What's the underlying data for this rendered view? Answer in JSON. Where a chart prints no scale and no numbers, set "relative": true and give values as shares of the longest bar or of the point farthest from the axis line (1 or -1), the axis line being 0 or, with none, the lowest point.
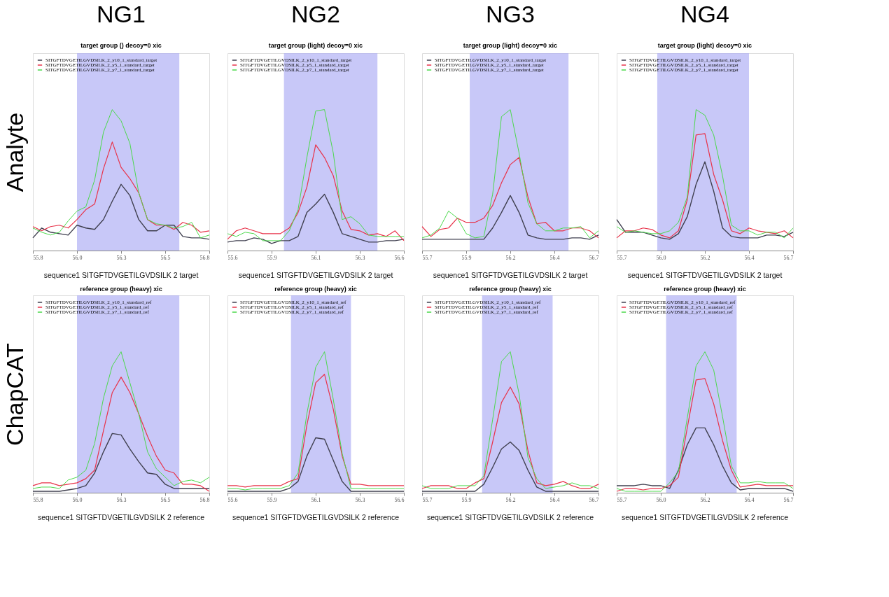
{
  "chart_data": [
    {
      "type": "line",
      "title": "NG1",
      "subtitle": "target group () decoy=0 xic",
      "ylabel": "Analyte",
      "relative": true,
      "legend": "top left",
      "x": [
        55.8,
        55.85,
        55.9,
        55.95,
        56.0,
        56.05,
        56.1,
        56.15,
        56.2,
        56.25,
        56.3,
        56.35,
        56.4,
        56.45,
        56.5,
        56.55,
        56.6,
        56.65,
        56.7,
        56.75,
        56.8
      ],
      "xlim": [
        55.8,
        56.8
      ],
      "xticks": [
        55.8,
        {
          "value": 56.05,
          "label": "56.0"
        },
        56.3,
        {
          "value": 56.55,
          "label": "56.5"
        },
        56.8
      ],
      "bands": [
        {
          "axis": "x",
          "from": 56.05,
          "to": 56.63,
          "color": "#aaaaf5"
        }
      ],
      "series": [
        {
          "name": "SITGFTDVGETILGVDSILK_2_y10_1_standard_target",
          "color": "#404050",
          "values": [
            0.09,
            0.16,
            0.13,
            0.12,
            0.11,
            0.18,
            0.16,
            0.15,
            0.22,
            0.35,
            0.47,
            0.39,
            0.22,
            0.14,
            0.14,
            0.18,
            0.18,
            0.1,
            0.09,
            0.09,
            0.08
          ]
        },
        {
          "name": "SITGFTDVGETILGVDSILK_2_y5_1_standard_target",
          "color": "#e8334a",
          "values": [
            0.17,
            0.14,
            0.17,
            0.18,
            0.16,
            0.22,
            0.29,
            0.33,
            0.58,
            0.77,
            0.59,
            0.51,
            0.41,
            0.22,
            0.18,
            0.18,
            0.15,
            0.2,
            0.18,
            0.13,
            0.14
          ]
        },
        {
          "name": "SITGFTDVGETILGVDSILK_2_y7_1_standard_target",
          "color": "#4cd94c",
          "values": [
            0.16,
            0.13,
            0.11,
            0.13,
            0.21,
            0.28,
            0.31,
            0.5,
            0.84,
            1.0,
            0.92,
            0.76,
            0.41,
            0.22,
            0.19,
            0.18,
            0.16,
            0.17,
            0.2,
            0.09,
            0.11
          ]
        }
      ],
      "annotations": [
        "sequence1 SITGFTDVGETILGVDSILK 2 target"
      ]
    },
    {
      "type": "line",
      "title": "NG2",
      "subtitle": "target group (light) decoy=0 xic",
      "relative": true,
      "legend": "top left",
      "x": [
        55.6,
        55.65,
        55.7,
        55.75,
        55.8,
        55.85,
        55.9,
        55.95,
        56.0,
        56.05,
        56.1,
        56.15,
        56.2,
        56.25,
        56.3,
        56.35,
        56.4,
        56.45,
        56.5,
        56.55,
        56.6
      ],
      "xlim": [
        55.6,
        56.6
      ],
      "xticks": [
        55.6,
        {
          "value": 55.85,
          "label": "55.9"
        },
        56.1,
        {
          "value": 56.35,
          "label": "56.3"
        },
        56.6
      ],
      "bands": [
        {
          "axis": "x",
          "from": 55.92,
          "to": 56.45,
          "color": "#aaaaf5"
        }
      ],
      "series": [
        {
          "name": "SITGFTDVGETILGVDSILK_2_y10_1_standard_target",
          "color": "#404050",
          "values": [
            0.06,
            0.07,
            0.07,
            0.09,
            0.08,
            0.05,
            0.07,
            0.07,
            0.1,
            0.27,
            0.33,
            0.4,
            0.27,
            0.12,
            0.1,
            0.08,
            0.06,
            0.06,
            0.07,
            0.07,
            0.08
          ]
        },
        {
          "name": "SITGFTDVGETILGVDSILK_2_y5_1_standard_target",
          "color": "#e8334a",
          "values": [
            0.08,
            0.14,
            0.16,
            0.14,
            0.12,
            0.12,
            0.12,
            0.16,
            0.27,
            0.45,
            0.75,
            0.66,
            0.53,
            0.28,
            0.15,
            0.14,
            0.11,
            0.12,
            0.1,
            0.14,
            0.07
          ]
        },
        {
          "name": "SITGFTDVGETILGVDSILK_2_y7_1_standard_target",
          "color": "#4cd94c",
          "values": [
            0.12,
            0.1,
            0.13,
            0.12,
            0.07,
            0.07,
            0.07,
            0.14,
            0.29,
            0.66,
            0.99,
            1.0,
            0.69,
            0.22,
            0.24,
            0.19,
            0.11,
            0.1,
            0.1,
            0.1,
            0.1
          ]
        }
      ],
      "annotations": [
        "sequence1 SITGFTDVGETILGVDSILK 2 target"
      ]
    },
    {
      "type": "line",
      "title": "NG3",
      "subtitle": "target group (light) decoy=0 xic",
      "relative": true,
      "legend": "top left",
      "x": [
        55.7,
        55.75,
        55.8,
        55.85,
        55.9,
        55.95,
        56.0,
        56.05,
        56.1,
        56.15,
        56.2,
        56.25,
        56.3,
        56.35,
        56.4,
        56.45,
        56.5,
        56.55,
        56.6,
        56.65,
        56.7
      ],
      "xlim": [
        55.7,
        56.7
      ],
      "xticks": [
        55.7,
        {
          "value": 55.95,
          "label": "55.9"
        },
        56.2,
        {
          "value": 56.45,
          "label": "56.4"
        },
        56.7
      ],
      "bands": [
        {
          "axis": "x",
          "from": 55.97,
          "to": 56.53,
          "color": "#aaaaf5"
        }
      ],
      "series": [
        {
          "name": "SITGFTDVGETILGVDSILK_2_y10_1_standard_target",
          "color": "#404050",
          "values": [
            0.08,
            0.08,
            0.08,
            0.08,
            0.08,
            0.08,
            0.08,
            0.08,
            0.16,
            0.27,
            0.39,
            0.27,
            0.11,
            0.09,
            0.08,
            0.08,
            0.08,
            0.09,
            0.09,
            0.08,
            0.11
          ]
        },
        {
          "name": "SITGFTDVGETILGVDSILK_2_y5_1_standard_target",
          "color": "#e8334a",
          "values": [
            0.17,
            0.1,
            0.15,
            0.16,
            0.23,
            0.2,
            0.2,
            0.23,
            0.32,
            0.48,
            0.61,
            0.66,
            0.38,
            0.19,
            0.2,
            0.14,
            0.14,
            0.16,
            0.16,
            0.14,
            0.09
          ]
        },
        {
          "name": "SITGFTDVGETILGVDSILK_2_y7_1_standard_target",
          "color": "#4cd94c",
          "values": [
            0.09,
            0.11,
            0.16,
            0.28,
            0.23,
            0.12,
            0.09,
            0.1,
            0.4,
            0.95,
            1.0,
            0.69,
            0.34,
            0.19,
            0.14,
            0.14,
            0.16,
            0.16,
            0.17,
            0.09,
            0.14
          ]
        }
      ],
      "annotations": [
        "sequence1 SITGFTDVGETILGVDSILK 2 target"
      ]
    },
    {
      "type": "line",
      "title": "NG4",
      "subtitle": "target group (light) decoy=0 xic",
      "relative": true,
      "legend": "top left",
      "x": [
        55.7,
        55.75,
        55.8,
        55.85,
        55.9,
        55.95,
        56.0,
        56.05,
        56.1,
        56.15,
        56.2,
        56.25,
        56.3,
        56.35,
        56.4,
        56.45,
        56.5,
        56.55,
        56.6,
        56.65,
        56.7
      ],
      "xlim": [
        55.7,
        56.7
      ],
      "xticks": [
        55.7,
        {
          "value": 55.95,
          "label": "56.0"
        },
        56.2,
        {
          "value": 56.45,
          "label": "56.4"
        },
        56.7
      ],
      "bands": [
        {
          "axis": "x",
          "from": 55.93,
          "to": 56.45,
          "color": "#aaaaf5"
        }
      ],
      "series": [
        {
          "name": "SITGFTDVGETILGVDSILK_2_y10_1_standard_target",
          "color": "#404050",
          "values": [
            0.22,
            0.13,
            0.13,
            0.13,
            0.11,
            0.09,
            0.08,
            0.12,
            0.24,
            0.47,
            0.63,
            0.42,
            0.16,
            0.1,
            0.09,
            0.09,
            0.09,
            0.11,
            0.11,
            0.1,
            0.13
          ]
        },
        {
          "name": "SITGFTDVGETILGVDSILK_2_y5_1_standard_target",
          "color": "#e8334a",
          "values": [
            0.09,
            0.14,
            0.14,
            0.16,
            0.15,
            0.11,
            0.09,
            0.14,
            0.36,
            0.82,
            0.83,
            0.54,
            0.36,
            0.14,
            0.12,
            0.16,
            0.14,
            0.13,
            0.12,
            0.14,
            0.09
          ]
        },
        {
          "name": "SITGFTDVGETILGVDSILK_2_y7_1_standard_target",
          "color": "#4cd94c",
          "values": [
            0.17,
            0.13,
            0.14,
            0.13,
            0.12,
            0.12,
            0.14,
            0.2,
            0.38,
            1.0,
            0.96,
            0.82,
            0.53,
            0.18,
            0.14,
            0.14,
            0.11,
            0.13,
            0.13,
            0.09,
            0.16
          ]
        }
      ],
      "annotations": [
        "sequence1 SITGFTDVGETILGVDSILK 2 target"
      ]
    },
    {
      "type": "line",
      "title": "reference group (heavy) xic",
      "ylabel": "ChapCAT",
      "relative": true,
      "legend": "top left",
      "x": [
        55.8,
        55.85,
        55.9,
        55.95,
        56.0,
        56.05,
        56.1,
        56.15,
        56.2,
        56.25,
        56.3,
        56.35,
        56.4,
        56.45,
        56.5,
        56.55,
        56.6,
        56.65,
        56.7,
        56.75,
        56.8
      ],
      "xlim": [
        55.8,
        56.8
      ],
      "xticks": [
        55.8,
        {
          "value": 56.05,
          "label": "56.0"
        },
        56.3,
        {
          "value": 56.55,
          "label": "56.5"
        },
        56.8
      ],
      "bands": [
        {
          "axis": "x",
          "from": 56.05,
          "to": 56.63,
          "color": "#aaaaf5"
        }
      ],
      "series": [
        {
          "name": "SITGFTDVGETILGVDSILK_2_y10_1_standard_ref",
          "color": "#404050",
          "values": [
            0.01,
            0.01,
            0.01,
            0.01,
            0.02,
            0.03,
            0.05,
            0.14,
            0.29,
            0.42,
            0.41,
            0.31,
            0.22,
            0.14,
            0.13,
            0.06,
            0.03,
            0.03,
            0.03,
            0.03,
            0.03
          ]
        },
        {
          "name": "SITGFTDVGETILGVDSILK_2_y5_1_standard_ref",
          "color": "#e8334a",
          "values": [
            0.05,
            0.07,
            0.07,
            0.05,
            0.06,
            0.07,
            0.1,
            0.16,
            0.44,
            0.71,
            0.82,
            0.71,
            0.56,
            0.4,
            0.26,
            0.16,
            0.14,
            0.06,
            0.06,
            0.05,
            0.01
          ]
        },
        {
          "name": "SITGFTDVGETILGVDSILK_2_y7_1_standard_ref",
          "color": "#4cd94c",
          "values": [
            0.03,
            0.04,
            0.04,
            0.03,
            0.09,
            0.11,
            0.16,
            0.35,
            0.67,
            0.9,
            1.0,
            0.78,
            0.56,
            0.29,
            0.17,
            0.11,
            0.05,
            0.08,
            0.09,
            0.07,
            0.11
          ]
        }
      ],
      "annotations": [
        "sequence1 SITGFTDVGETILGVDSILK 2 reference"
      ]
    },
    {
      "type": "line",
      "title": "reference group (heavy) xic",
      "relative": true,
      "legend": "top left",
      "x": [
        55.6,
        55.65,
        55.7,
        55.75,
        55.8,
        55.85,
        55.9,
        55.95,
        56.0,
        56.05,
        56.1,
        56.15,
        56.2,
        56.25,
        56.3,
        56.35,
        56.4,
        56.45,
        56.5,
        56.55,
        56.6
      ],
      "xlim": [
        55.6,
        56.6
      ],
      "xticks": [
        55.6,
        {
          "value": 55.85,
          "label": "55.9"
        },
        56.1,
        {
          "value": 56.35,
          "label": "56.3"
        },
        56.6
      ],
      "bands": [
        {
          "axis": "x",
          "from": 55.96,
          "to": 56.3,
          "color": "#aaaaf5"
        }
      ],
      "series": [
        {
          "name": "SITGFTDVGETILGVDSILK_2_y10_1_standard_ref",
          "color": "#404050",
          "values": [
            0.01,
            0.01,
            0.01,
            0.01,
            0.01,
            0.01,
            0.01,
            0.03,
            0.08,
            0.26,
            0.39,
            0.38,
            0.23,
            0.08,
            0.01,
            0.01,
            0.01,
            0.01,
            0.01,
            0.01,
            0.01
          ]
        },
        {
          "name": "SITGFTDVGETILGVDSILK_2_y5_1_standard_ref",
          "color": "#e8334a",
          "values": [
            0.05,
            0.05,
            0.04,
            0.05,
            0.05,
            0.05,
            0.05,
            0.08,
            0.1,
            0.48,
            0.78,
            0.84,
            0.59,
            0.26,
            0.06,
            0.06,
            0.05,
            0.05,
            0.05,
            0.05,
            0.05
          ]
        },
        {
          "name": "SITGFTDVGETILGVDSILK_2_y7_1_standard_ref",
          "color": "#4cd94c",
          "values": [
            0.03,
            0.03,
            0.02,
            0.03,
            0.03,
            0.03,
            0.03,
            0.05,
            0.14,
            0.56,
            0.89,
            1.0,
            0.66,
            0.28,
            0.03,
            0.03,
            0.03,
            0.03,
            0.03,
            0.03,
            0.03
          ]
        }
      ],
      "annotations": [
        "sequence1 SITGFTDVGETILGVDSILK 2 reference"
      ]
    },
    {
      "type": "line",
      "title": "reference group (heavy) xic",
      "relative": true,
      "legend": "top left",
      "x": [
        55.7,
        55.75,
        55.8,
        55.85,
        55.9,
        55.95,
        56.0,
        56.05,
        56.1,
        56.15,
        56.2,
        56.25,
        56.3,
        56.35,
        56.4,
        56.45,
        56.5,
        56.55,
        56.6,
        56.65,
        56.7
      ],
      "xlim": [
        55.7,
        56.7
      ],
      "xticks": [
        55.7,
        {
          "value": 55.95,
          "label": "55.9"
        },
        56.2,
        {
          "value": 56.45,
          "label": "56.4"
        },
        56.7
      ],
      "bands": [
        {
          "axis": "x",
          "from": 56.04,
          "to": 56.44,
          "color": "#aaaaf5"
        }
      ],
      "series": [
        {
          "name": "SITGFTDVGETILGVDSILK_2_y10_1_standard_ref",
          "color": "#404050",
          "values": [
            0.01,
            0.01,
            0.01,
            0.01,
            0.01,
            0.01,
            0.01,
            0.06,
            0.18,
            0.31,
            0.36,
            0.3,
            0.16,
            0.04,
            0.01,
            0.01,
            0.01,
            0.01,
            0.01,
            0.01,
            0.01
          ]
        },
        {
          "name": "SITGFTDVGETILGVDSILK_2_y5_1_standard_ref",
          "color": "#e8334a",
          "values": [
            0.03,
            0.05,
            0.05,
            0.05,
            0.03,
            0.03,
            0.07,
            0.1,
            0.36,
            0.64,
            0.75,
            0.63,
            0.3,
            0.07,
            0.05,
            0.06,
            0.08,
            0.05,
            0.03,
            0.03,
            0.06
          ]
        },
        {
          "name": "SITGFTDVGETILGVDSILK_2_y7_1_standard_ref",
          "color": "#4cd94c",
          "values": [
            0.05,
            0.03,
            0.03,
            0.03,
            0.05,
            0.05,
            0.05,
            0.12,
            0.52,
            0.93,
            1.0,
            0.7,
            0.25,
            0.1,
            0.03,
            0.04,
            0.05,
            0.07,
            0.05,
            0.05,
            0.03
          ]
        }
      ],
      "annotations": [
        "sequence1 SITGFTDVGETILGVDSILK 2 reference"
      ]
    },
    {
      "type": "line",
      "title": "reference group (heavy) xic",
      "relative": true,
      "legend": "top left",
      "x": [
        55.7,
        55.75,
        55.8,
        55.85,
        55.9,
        55.95,
        56.0,
        56.05,
        56.1,
        56.15,
        56.2,
        56.25,
        56.3,
        56.35,
        56.4,
        56.45,
        56.5,
        56.55,
        56.6,
        56.65,
        56.7
      ],
      "xlim": [
        55.7,
        56.7
      ],
      "xticks": [
        55.7,
        {
          "value": 55.95,
          "label": "56.0"
        },
        56.2,
        {
          "value": 56.45,
          "label": "56.4"
        },
        56.7
      ],
      "bands": [
        {
          "axis": "x",
          "from": 55.98,
          "to": 56.38,
          "color": "#aaaaf5"
        }
      ],
      "series": [
        {
          "name": "SITGFTDVGETILGVDSILK_2_y10_1_standard_ref",
          "color": "#404050",
          "values": [
            0.05,
            0.05,
            0.05,
            0.06,
            0.05,
            0.05,
            0.03,
            0.16,
            0.34,
            0.46,
            0.46,
            0.34,
            0.19,
            0.07,
            0.02,
            0.03,
            0.03,
            0.03,
            0.03,
            0.03,
            0.01
          ]
        },
        {
          "name": "SITGFTDVGETILGVDSILK_2_y5_1_standard_ref",
          "color": "#e8334a",
          "values": [
            0.01,
            0.03,
            0.03,
            0.02,
            0.03,
            0.03,
            0.05,
            0.11,
            0.46,
            0.8,
            0.81,
            0.63,
            0.37,
            0.16,
            0.04,
            0.05,
            0.06,
            0.05,
            0.05,
            0.05,
            0.05
          ]
        },
        {
          "name": "SITGFTDVGETILGVDSILK_2_y7_1_standard_ref",
          "color": "#4cd94c",
          "values": [
            0.03,
            0.01,
            0.01,
            0.01,
            0.01,
            0.01,
            0.07,
            0.15,
            0.53,
            0.9,
            1.0,
            0.87,
            0.54,
            0.19,
            0.07,
            0.07,
            0.08,
            0.07,
            0.07,
            0.07,
            0.03
          ]
        }
      ],
      "annotations": [
        "sequence1 SITGFTDVGETILGVDSILK 2 reference"
      ]
    }
  ]
}
